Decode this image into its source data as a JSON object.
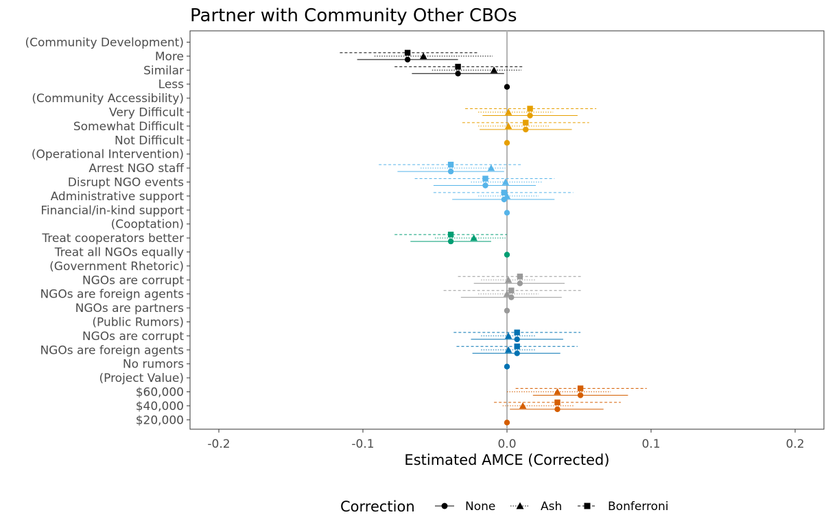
{
  "chart_data": {
    "type": "scatter",
    "title": "Partner with Community Other CBOs",
    "xlabel": "Estimated AMCE (Corrected)",
    "ylabel": "",
    "xlim": [
      -0.22,
      0.22
    ],
    "x_ticks": [
      -0.2,
      -0.1,
      0.0,
      0.1,
      0.2
    ],
    "x_tick_labels": [
      "-0.2",
      "-0.1",
      "0.0",
      "0.1",
      "0.2"
    ],
    "grid": false,
    "reference_line": 0,
    "legend": {
      "title": "Correction",
      "placement": "bottom",
      "entries": [
        {
          "name": "None",
          "shape": "circle",
          "line": "solid"
        },
        {
          "name": "Ash",
          "shape": "triangle",
          "line": "dotted"
        },
        {
          "name": "Bonferroni",
          "shape": "square",
          "line": "dashed"
        }
      ]
    },
    "group_colors": {
      "Community Development": "#000000",
      "Community Accessibility": "#E69F00",
      "Operational Intervention": "#56B4E9",
      "Cooptation": "#009E73",
      "Government Rhetoric": "#999999",
      "Public Rumors": "#0072B2",
      "Project Value": "#D55E00"
    },
    "rows": [
      {
        "label": "(Community Development)",
        "header": true
      },
      {
        "label": "More",
        "group": "Community Development",
        "none": {
          "est": -0.069,
          "lo": -0.104,
          "hi": -0.034
        },
        "ash": {
          "est": -0.058,
          "lo": -0.092,
          "hi": -0.01
        },
        "bonf": {
          "est": -0.069,
          "lo": -0.116,
          "hi": -0.02
        }
      },
      {
        "label": "Similar",
        "group": "Community Development",
        "none": {
          "est": -0.034,
          "lo": -0.066,
          "hi": -0.002
        },
        "ash": {
          "est": -0.009,
          "lo": -0.052,
          "hi": 0.01
        },
        "bonf": {
          "est": -0.034,
          "lo": -0.078,
          "hi": 0.011
        }
      },
      {
        "label": "Less",
        "group": "Community Development",
        "baseline": true
      },
      {
        "label": "(Community Accessibility)",
        "header": true
      },
      {
        "label": "Very Difficult",
        "group": "Community Accessibility",
        "none": {
          "est": 0.016,
          "lo": -0.017,
          "hi": 0.049
        },
        "ash": {
          "est": 0.001,
          "lo": -0.02,
          "hi": 0.032
        },
        "bonf": {
          "est": 0.016,
          "lo": -0.029,
          "hi": 0.062
        }
      },
      {
        "label": "Somewhat Difficult",
        "group": "Community Accessibility",
        "none": {
          "est": 0.013,
          "lo": -0.019,
          "hi": 0.045
        },
        "ash": {
          "est": 0.001,
          "lo": -0.02,
          "hi": 0.03
        },
        "bonf": {
          "est": 0.013,
          "lo": -0.031,
          "hi": 0.057
        }
      },
      {
        "label": "Not Difficult",
        "group": "Community Accessibility",
        "baseline": true
      },
      {
        "label": "(Operational Intervention)",
        "header": true
      },
      {
        "label": "Arrest NGO staff",
        "group": "Operational Intervention",
        "none": {
          "est": -0.039,
          "lo": -0.076,
          "hi": -0.002
        },
        "ash": {
          "est": -0.011,
          "lo": -0.06,
          "hi": -0.001
        },
        "bonf": {
          "est": -0.039,
          "lo": -0.089,
          "hi": 0.011
        }
      },
      {
        "label": "Disrupt NGO events",
        "group": "Operational Intervention",
        "none": {
          "est": -0.015,
          "lo": -0.051,
          "hi": 0.02
        },
        "ash": {
          "est": -0.001,
          "lo": -0.025,
          "hi": 0.024
        },
        "bonf": {
          "est": -0.015,
          "lo": -0.064,
          "hi": 0.033
        }
      },
      {
        "label": "Administrative support",
        "group": "Operational Intervention",
        "none": {
          "est": -0.002,
          "lo": -0.038,
          "hi": 0.033
        },
        "ash": {
          "est": 0.0,
          "lo": -0.02,
          "hi": 0.022
        },
        "bonf": {
          "est": -0.002,
          "lo": -0.051,
          "hi": 0.046
        }
      },
      {
        "label": "Financial/in-kind support",
        "group": "Operational Intervention",
        "baseline": true
      },
      {
        "label": "(Cooptation)",
        "header": true
      },
      {
        "label": "Treat cooperators better",
        "group": "Cooptation",
        "none": {
          "est": -0.039,
          "lo": -0.067,
          "hi": -0.011
        },
        "ash": {
          "est": -0.023,
          "lo": -0.05,
          "hi": -0.001
        },
        "bonf": {
          "est": -0.039,
          "lo": -0.078,
          "hi": 0.0
        }
      },
      {
        "label": "Treat all NGOs equally",
        "group": "Cooptation",
        "baseline": true
      },
      {
        "label": "(Government Rhetoric)",
        "header": true
      },
      {
        "label": "NGOs are corrupt",
        "group": "Government Rhetoric",
        "none": {
          "est": 0.009,
          "lo": -0.023,
          "hi": 0.04
        },
        "ash": {
          "est": 0.001,
          "lo": -0.018,
          "hi": 0.02
        },
        "bonf": {
          "est": 0.009,
          "lo": -0.034,
          "hi": 0.052
        }
      },
      {
        "label": "NGOs are foreign agents",
        "group": "Government Rhetoric",
        "none": {
          "est": 0.003,
          "lo": -0.032,
          "hi": 0.038
        },
        "ash": {
          "est": 0.0,
          "lo": -0.02,
          "hi": 0.022
        },
        "bonf": {
          "est": 0.003,
          "lo": -0.044,
          "hi": 0.052
        }
      },
      {
        "label": "NGOs are partners",
        "group": "Government Rhetoric",
        "baseline": true
      },
      {
        "label": "(Public Rumors)",
        "header": true
      },
      {
        "label": "NGOs are corrupt",
        "group": "Public Rumors",
        "none": {
          "est": 0.007,
          "lo": -0.025,
          "hi": 0.039
        },
        "ash": {
          "est": 0.001,
          "lo": -0.018,
          "hi": 0.02
        },
        "bonf": {
          "est": 0.007,
          "lo": -0.037,
          "hi": 0.051
        }
      },
      {
        "label": "NGOs are foreign agents",
        "group": "Public Rumors",
        "none": {
          "est": 0.007,
          "lo": -0.024,
          "hi": 0.037
        },
        "ash": {
          "est": 0.001,
          "lo": -0.018,
          "hi": 0.02
        },
        "bonf": {
          "est": 0.007,
          "lo": -0.035,
          "hi": 0.049
        }
      },
      {
        "label": "No rumors",
        "group": "Public Rumors",
        "baseline": true
      },
      {
        "label": "(Project Value)",
        "header": true
      },
      {
        "label": "$60,000",
        "group": "Project Value",
        "none": {
          "est": 0.051,
          "lo": 0.018,
          "hi": 0.084
        },
        "ash": {
          "est": 0.035,
          "lo": 0.0,
          "hi": 0.072
        },
        "bonf": {
          "est": 0.051,
          "lo": 0.006,
          "hi": 0.097
        }
      },
      {
        "label": "$40,000",
        "group": "Project Value",
        "none": {
          "est": 0.035,
          "lo": 0.002,
          "hi": 0.067
        },
        "ash": {
          "est": 0.011,
          "lo": -0.003,
          "hi": 0.047
        },
        "bonf": {
          "est": 0.035,
          "lo": -0.009,
          "hi": 0.079
        }
      },
      {
        "label": "$20,000",
        "group": "Project Value",
        "baseline": true
      }
    ]
  }
}
